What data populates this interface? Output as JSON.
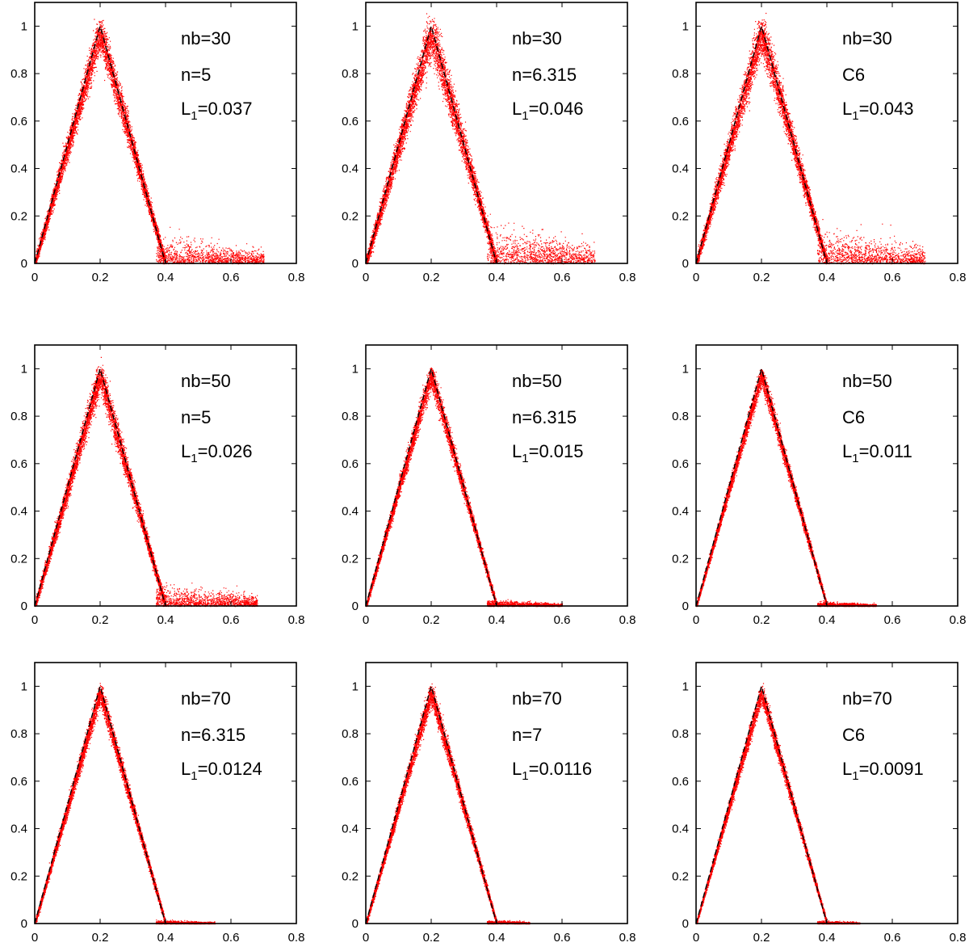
{
  "figure_colors": {
    "scatter": "#ff0000",
    "reference": "#000000",
    "frame": "#000000"
  },
  "chart_data": [
    {
      "type": "scatter",
      "panel": "row1-col1",
      "x_ticks": [
        "0",
        "0.2",
        "0.4",
        "0.6",
        "0.8"
      ],
      "y_ticks": [
        "0",
        "0.2",
        "0.4",
        "0.6",
        "0.8",
        "1"
      ],
      "xlim": [
        0,
        0.8
      ],
      "ylim": [
        0,
        1.1
      ],
      "reference_line": {
        "x": [
          0,
          0.2,
          0.4
        ],
        "y": [
          0,
          1,
          0
        ],
        "style": "dashed"
      },
      "scatter_spread": {
        "peak_width": 0.04,
        "tail_height": 0.05,
        "tail_extent": 0.7
      },
      "annotations": {
        "nb": "nb=30",
        "n": "n=5",
        "l1_prefix": "L",
        "l1_sub": "1",
        "l1_value": "=0.037"
      }
    },
    {
      "type": "scatter",
      "panel": "row1-col2",
      "x_ticks": [
        "0",
        "0.2",
        "0.4",
        "0.6",
        "0.8"
      ],
      "y_ticks": [
        "0",
        "0.2",
        "0.4",
        "0.6",
        "0.8",
        "1"
      ],
      "xlim": [
        0,
        0.8
      ],
      "ylim": [
        0,
        1.1
      ],
      "reference_line": {
        "x": [
          0,
          0.2,
          0.4
        ],
        "y": [
          0,
          1,
          0
        ],
        "style": "dashed"
      },
      "scatter_spread": {
        "peak_width": 0.05,
        "tail_height": 0.07,
        "tail_extent": 0.7
      },
      "annotations": {
        "nb": "nb=30",
        "n": "n=6.315",
        "l1_prefix": "L",
        "l1_sub": "1",
        "l1_value": "=0.046"
      }
    },
    {
      "type": "scatter",
      "panel": "row1-col3",
      "x_ticks": [
        "0",
        "0.2",
        "0.4",
        "0.6",
        "0.8"
      ],
      "y_ticks": [
        "0",
        "0.2",
        "0.4",
        "0.6",
        "0.8",
        "1"
      ],
      "xlim": [
        0,
        0.8
      ],
      "ylim": [
        0,
        1.1
      ],
      "reference_line": {
        "x": [
          0,
          0.2,
          0.4
        ],
        "y": [
          0,
          1,
          0
        ],
        "style": "dashed"
      },
      "scatter_spread": {
        "peak_width": 0.045,
        "tail_height": 0.06,
        "tail_extent": 0.7
      },
      "annotations": {
        "nb": "nb=30",
        "n": "C6",
        "l1_prefix": "L",
        "l1_sub": "1",
        "l1_value": "=0.043"
      }
    },
    {
      "type": "scatter",
      "panel": "row2-col1",
      "x_ticks": [
        "0",
        "0.2",
        "0.4",
        "0.6",
        "0.8"
      ],
      "y_ticks": [
        "0",
        "0.2",
        "0.4",
        "0.6",
        "0.8",
        "1"
      ],
      "xlim": [
        0,
        0.8
      ],
      "ylim": [
        0,
        1.1
      ],
      "reference_line": {
        "x": [
          0,
          0.2,
          0.4
        ],
        "y": [
          0,
          1,
          0
        ],
        "style": "dashed"
      },
      "scatter_spread": {
        "peak_width": 0.035,
        "tail_height": 0.04,
        "tail_extent": 0.68
      },
      "annotations": {
        "nb": "nb=50",
        "n": "n=5",
        "l1_prefix": "L",
        "l1_sub": "1",
        "l1_value": "=0.026"
      }
    },
    {
      "type": "scatter",
      "panel": "row2-col2",
      "x_ticks": [
        "0",
        "0.2",
        "0.4",
        "0.6",
        "0.8"
      ],
      "y_ticks": [
        "0",
        "0.2",
        "0.4",
        "0.6",
        "0.8",
        "1"
      ],
      "xlim": [
        0,
        0.8
      ],
      "ylim": [
        0,
        1.1
      ],
      "reference_line": {
        "x": [
          0,
          0.2,
          0.4
        ],
        "y": [
          0,
          1,
          0
        ],
        "style": "dashed"
      },
      "scatter_spread": {
        "peak_width": 0.025,
        "tail_height": 0.01,
        "tail_extent": 0.6
      },
      "annotations": {
        "nb": "nb=50",
        "n": "n=6.315",
        "l1_prefix": "L",
        "l1_sub": "1",
        "l1_value": "=0.015"
      }
    },
    {
      "type": "scatter",
      "panel": "row2-col3",
      "x_ticks": [
        "0",
        "0.2",
        "0.4",
        "0.6",
        "0.8"
      ],
      "y_ticks": [
        "0",
        "0.2",
        "0.4",
        "0.6",
        "0.8",
        "1"
      ],
      "xlim": [
        0,
        0.8
      ],
      "ylim": [
        0,
        1.1
      ],
      "reference_line": {
        "x": [
          0,
          0.2,
          0.4
        ],
        "y": [
          0,
          1,
          0
        ],
        "style": "dashed"
      },
      "scatter_spread": {
        "peak_width": 0.02,
        "tail_height": 0.008,
        "tail_extent": 0.55
      },
      "annotations": {
        "nb": "nb=50",
        "n": "C6",
        "l1_prefix": "L",
        "l1_sub": "1",
        "l1_value": "=0.011"
      }
    },
    {
      "type": "scatter",
      "panel": "row3-col1",
      "x_ticks": [
        "0",
        "0.2",
        "0.4",
        "0.6",
        "0.8"
      ],
      "y_ticks": [
        "0",
        "0.2",
        "0.4",
        "0.6",
        "0.8",
        "1"
      ],
      "xlim": [
        0,
        0.8
      ],
      "ylim": [
        0,
        1.1
      ],
      "reference_line": {
        "x": [
          0,
          0.2,
          0.4
        ],
        "y": [
          0,
          1,
          0
        ],
        "style": "dashed"
      },
      "scatter_spread": {
        "peak_width": 0.022,
        "tail_height": 0.006,
        "tail_extent": 0.55
      },
      "annotations": {
        "nb": "nb=70",
        "n": "n=6.315",
        "l1_prefix": "L",
        "l1_sub": "1",
        "l1_value": "=0.0124"
      }
    },
    {
      "type": "scatter",
      "panel": "row3-col2",
      "x_ticks": [
        "0",
        "0.2",
        "0.4",
        "0.6",
        "0.8"
      ],
      "y_ticks": [
        "0",
        "0.2",
        "0.4",
        "0.6",
        "0.8",
        "1"
      ],
      "xlim": [
        0,
        0.8
      ],
      "ylim": [
        0,
        1.1
      ],
      "reference_line": {
        "x": [
          0,
          0.2,
          0.4
        ],
        "y": [
          0,
          1,
          0
        ],
        "style": "dashed"
      },
      "scatter_spread": {
        "peak_width": 0.022,
        "tail_height": 0.006,
        "tail_extent": 0.5
      },
      "annotations": {
        "nb": "nb=70",
        "n": "n=7",
        "l1_prefix": "L",
        "l1_sub": "1",
        "l1_value": "=0.0116"
      }
    },
    {
      "type": "scatter",
      "panel": "row3-col3",
      "x_ticks": [
        "0",
        "0.2",
        "0.4",
        "0.6",
        "0.8"
      ],
      "y_ticks": [
        "0",
        "0.2",
        "0.4",
        "0.6",
        "0.8",
        "1"
      ],
      "xlim": [
        0,
        0.8
      ],
      "ylim": [
        0,
        1.1
      ],
      "reference_line": {
        "x": [
          0,
          0.2,
          0.4
        ],
        "y": [
          0,
          1,
          0
        ],
        "style": "dashed"
      },
      "scatter_spread": {
        "peak_width": 0.018,
        "tail_height": 0.005,
        "tail_extent": 0.5
      },
      "annotations": {
        "nb": "nb=70",
        "n": "C6",
        "l1_prefix": "L",
        "l1_sub": "1",
        "l1_value": "=0.0091"
      }
    }
  ]
}
